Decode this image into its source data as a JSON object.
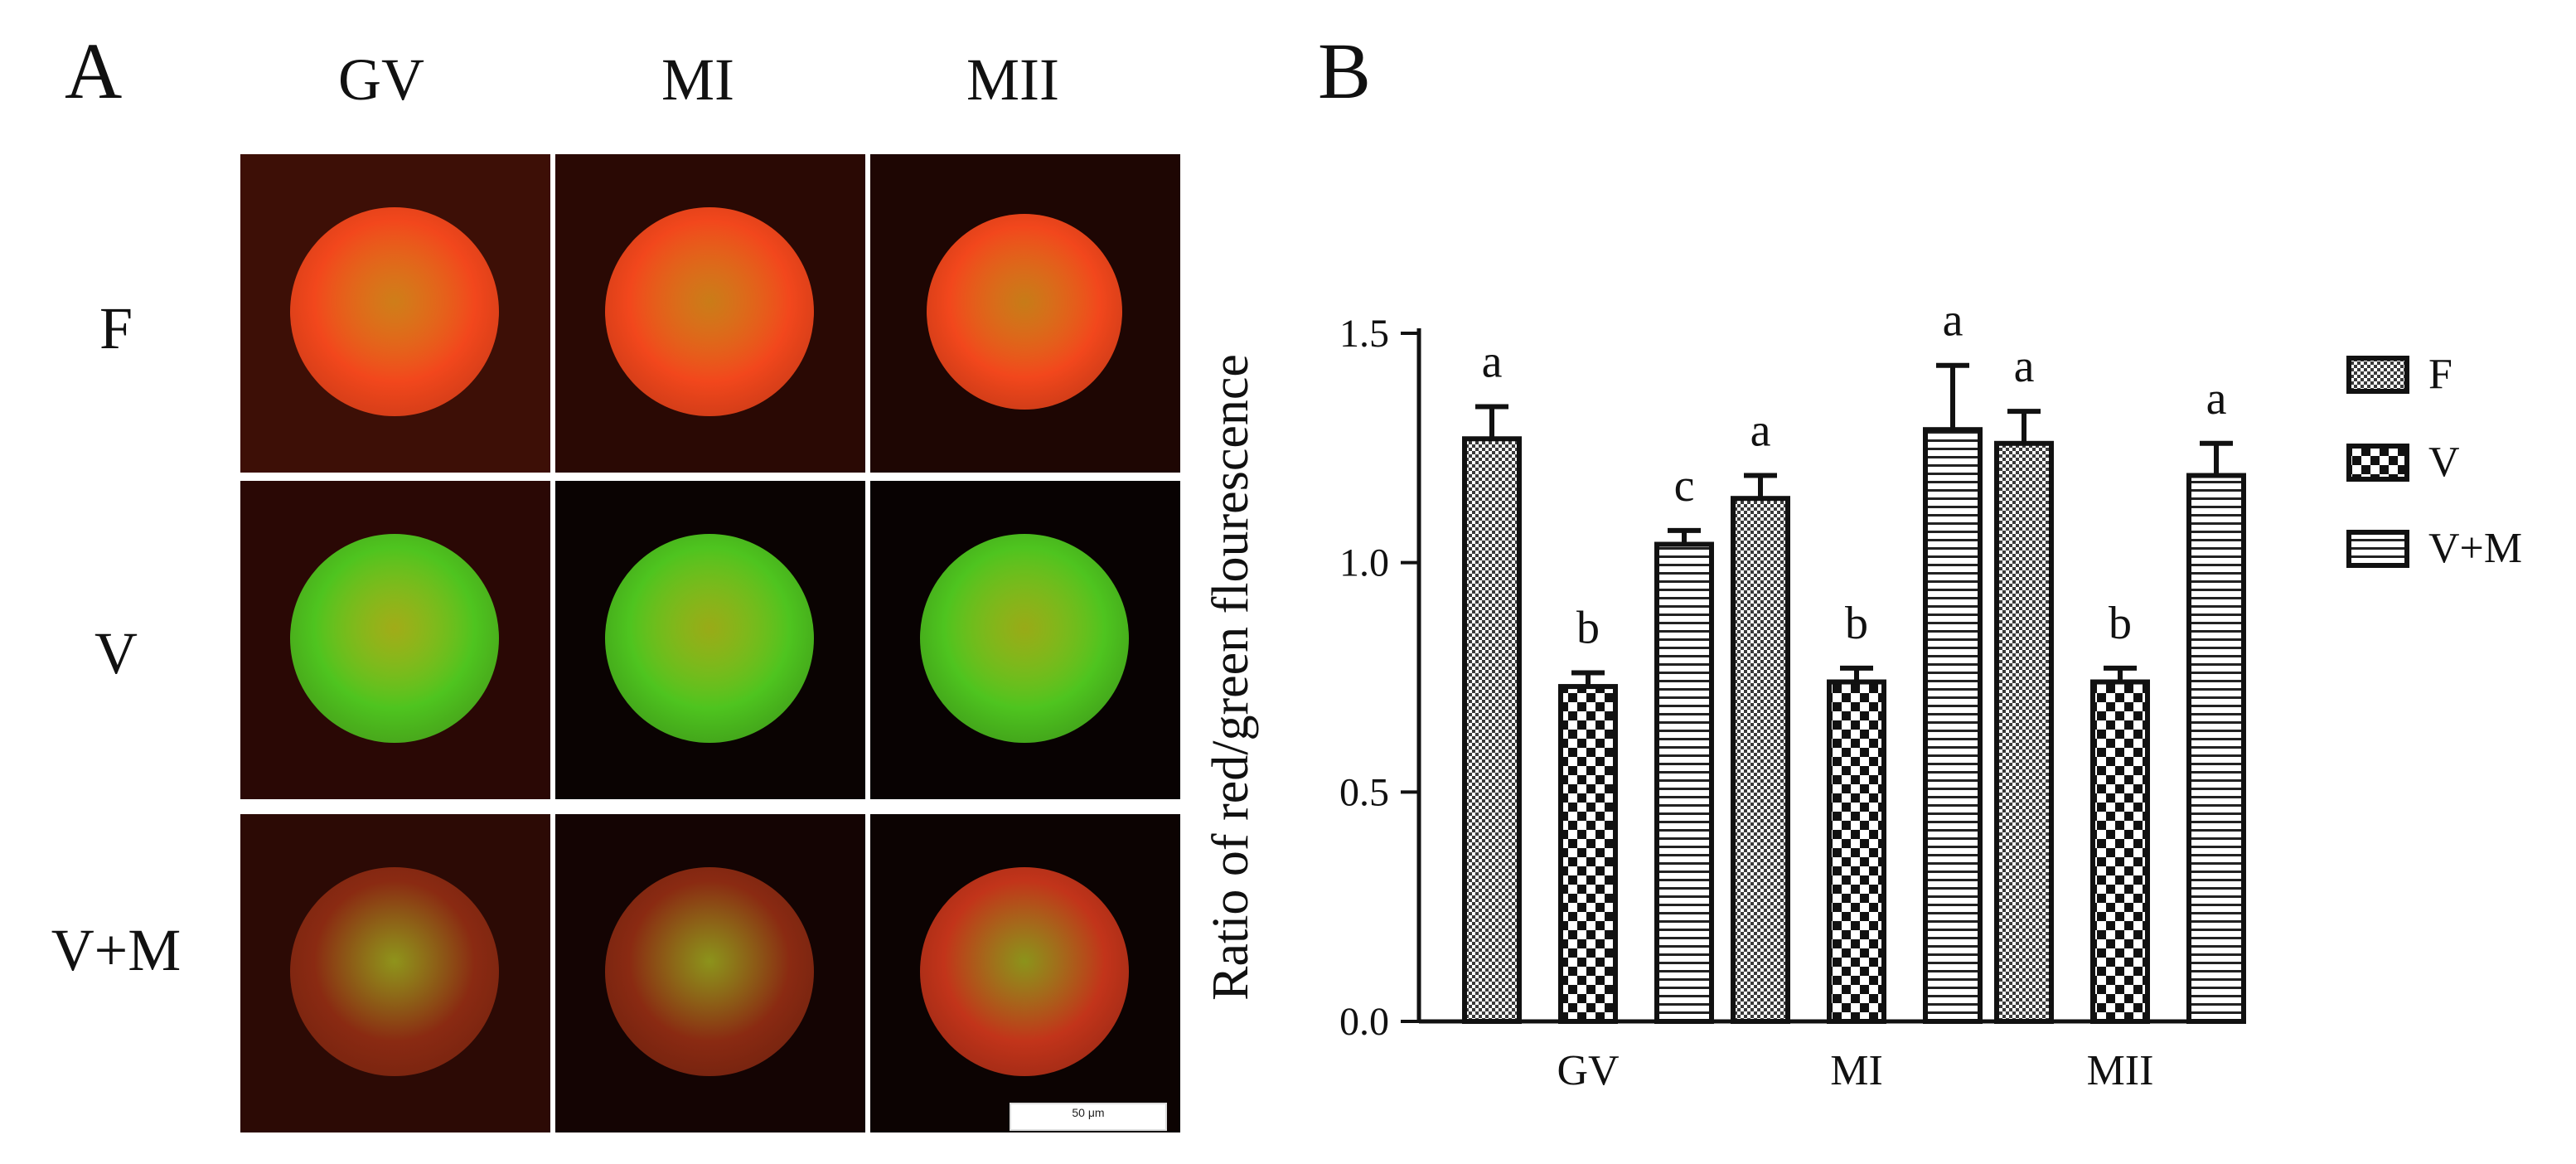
{
  "panel_a": {
    "letter": "A",
    "columns": [
      "GV",
      "MI",
      "MII"
    ],
    "rows": [
      "F",
      "V",
      "V+M"
    ],
    "scale_bar": "50 μm",
    "colors": {
      "F": {
        "bg": "#3a0d05",
        "cell": "#f2471c",
        "hi": "#ffa21f"
      },
      "V": {
        "bg": "#120403",
        "cell": "#4ec41f",
        "hi": "#c8e21f"
      },
      "V+M": {
        "bg": "#200704",
        "cell": "#8a2a12",
        "hi": "#9aa31e"
      }
    }
  },
  "chart_data": {
    "panel_letter": "B",
    "type": "bar",
    "categories": [
      "GV",
      "MI",
      "MII"
    ],
    "ylabel": "Ratio of red/green flourescence",
    "xlabel": "",
    "ylim": [
      0,
      1.5
    ],
    "yticks": [
      "0.0",
      "0.5",
      "1.0",
      "1.5"
    ],
    "grid": false,
    "legend_position": "right",
    "series": [
      {
        "name": "F",
        "pattern": "fine-check",
        "values": [
          1.27,
          1.14,
          1.26
        ],
        "errors": [
          0.07,
          0.05,
          0.07
        ],
        "letters": [
          "a",
          "a",
          "a"
        ]
      },
      {
        "name": "V",
        "pattern": "coarse-check",
        "values": [
          0.73,
          0.74,
          0.74
        ],
        "errors": [
          0.03,
          0.03,
          0.03
        ],
        "letters": [
          "b",
          "b",
          "b"
        ]
      },
      {
        "name": "V+M",
        "pattern": "horizontal-lines",
        "values": [
          1.04,
          1.29,
          1.19
        ],
        "errors": [
          0.03,
          0.14,
          0.07
        ],
        "letters": [
          "c",
          "a",
          "a"
        ]
      }
    ]
  }
}
